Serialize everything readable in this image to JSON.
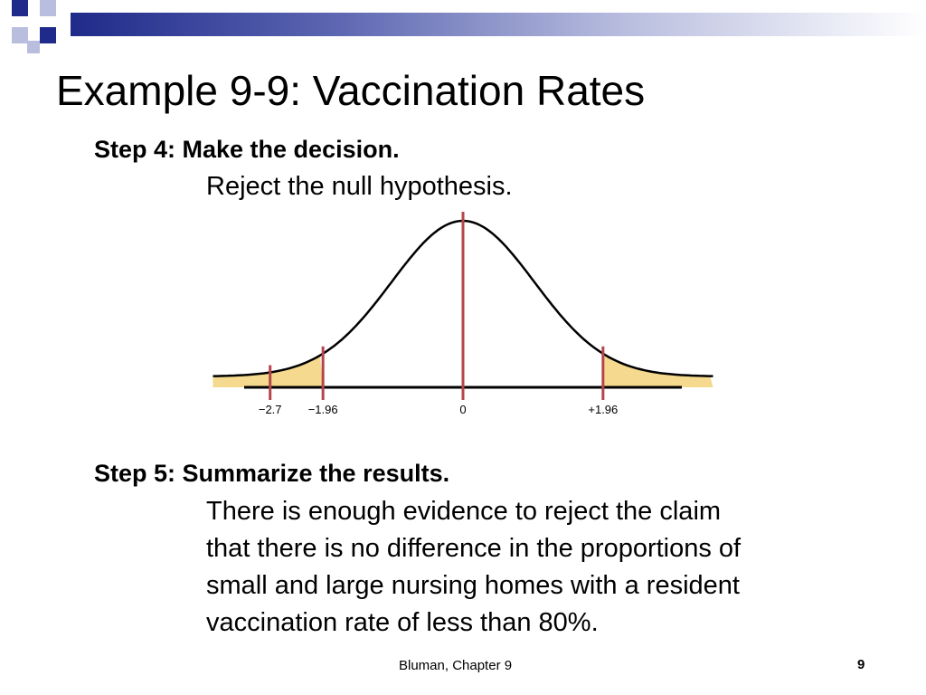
{
  "slide": {
    "title": "Example 9-9: Vaccination Rates",
    "step4": {
      "heading": "Step 4: Make the decision.",
      "body": "Reject the null hypothesis."
    },
    "step5": {
      "heading": "Step 5: Summarize the results.",
      "lines": [
        "There is enough evidence to reject the claim",
        "that there is no difference in the proportions of",
        "small and large nursing homes with a resident",
        "vaccination rate of less than 80%."
      ]
    },
    "footer": {
      "text": "Bluman, Chapter 9",
      "page_number": "9"
    }
  },
  "colors": {
    "header_dark": "#1f2a8a",
    "header_light": "#b9bedf",
    "curve": "#000000",
    "critical_lines": "#b5454a",
    "rejection_fill": "#f4d98e"
  },
  "figure": {
    "type": "normal-curve",
    "z_labels": [
      "−2.7",
      "−1.96",
      "0",
      "+1.96"
    ],
    "z_values": [
      -2.7,
      -1.96,
      0,
      1.96
    ],
    "x_range": [
      -3.5,
      3.5
    ],
    "shaded_tails": "two-tailed beyond ±1.96"
  }
}
